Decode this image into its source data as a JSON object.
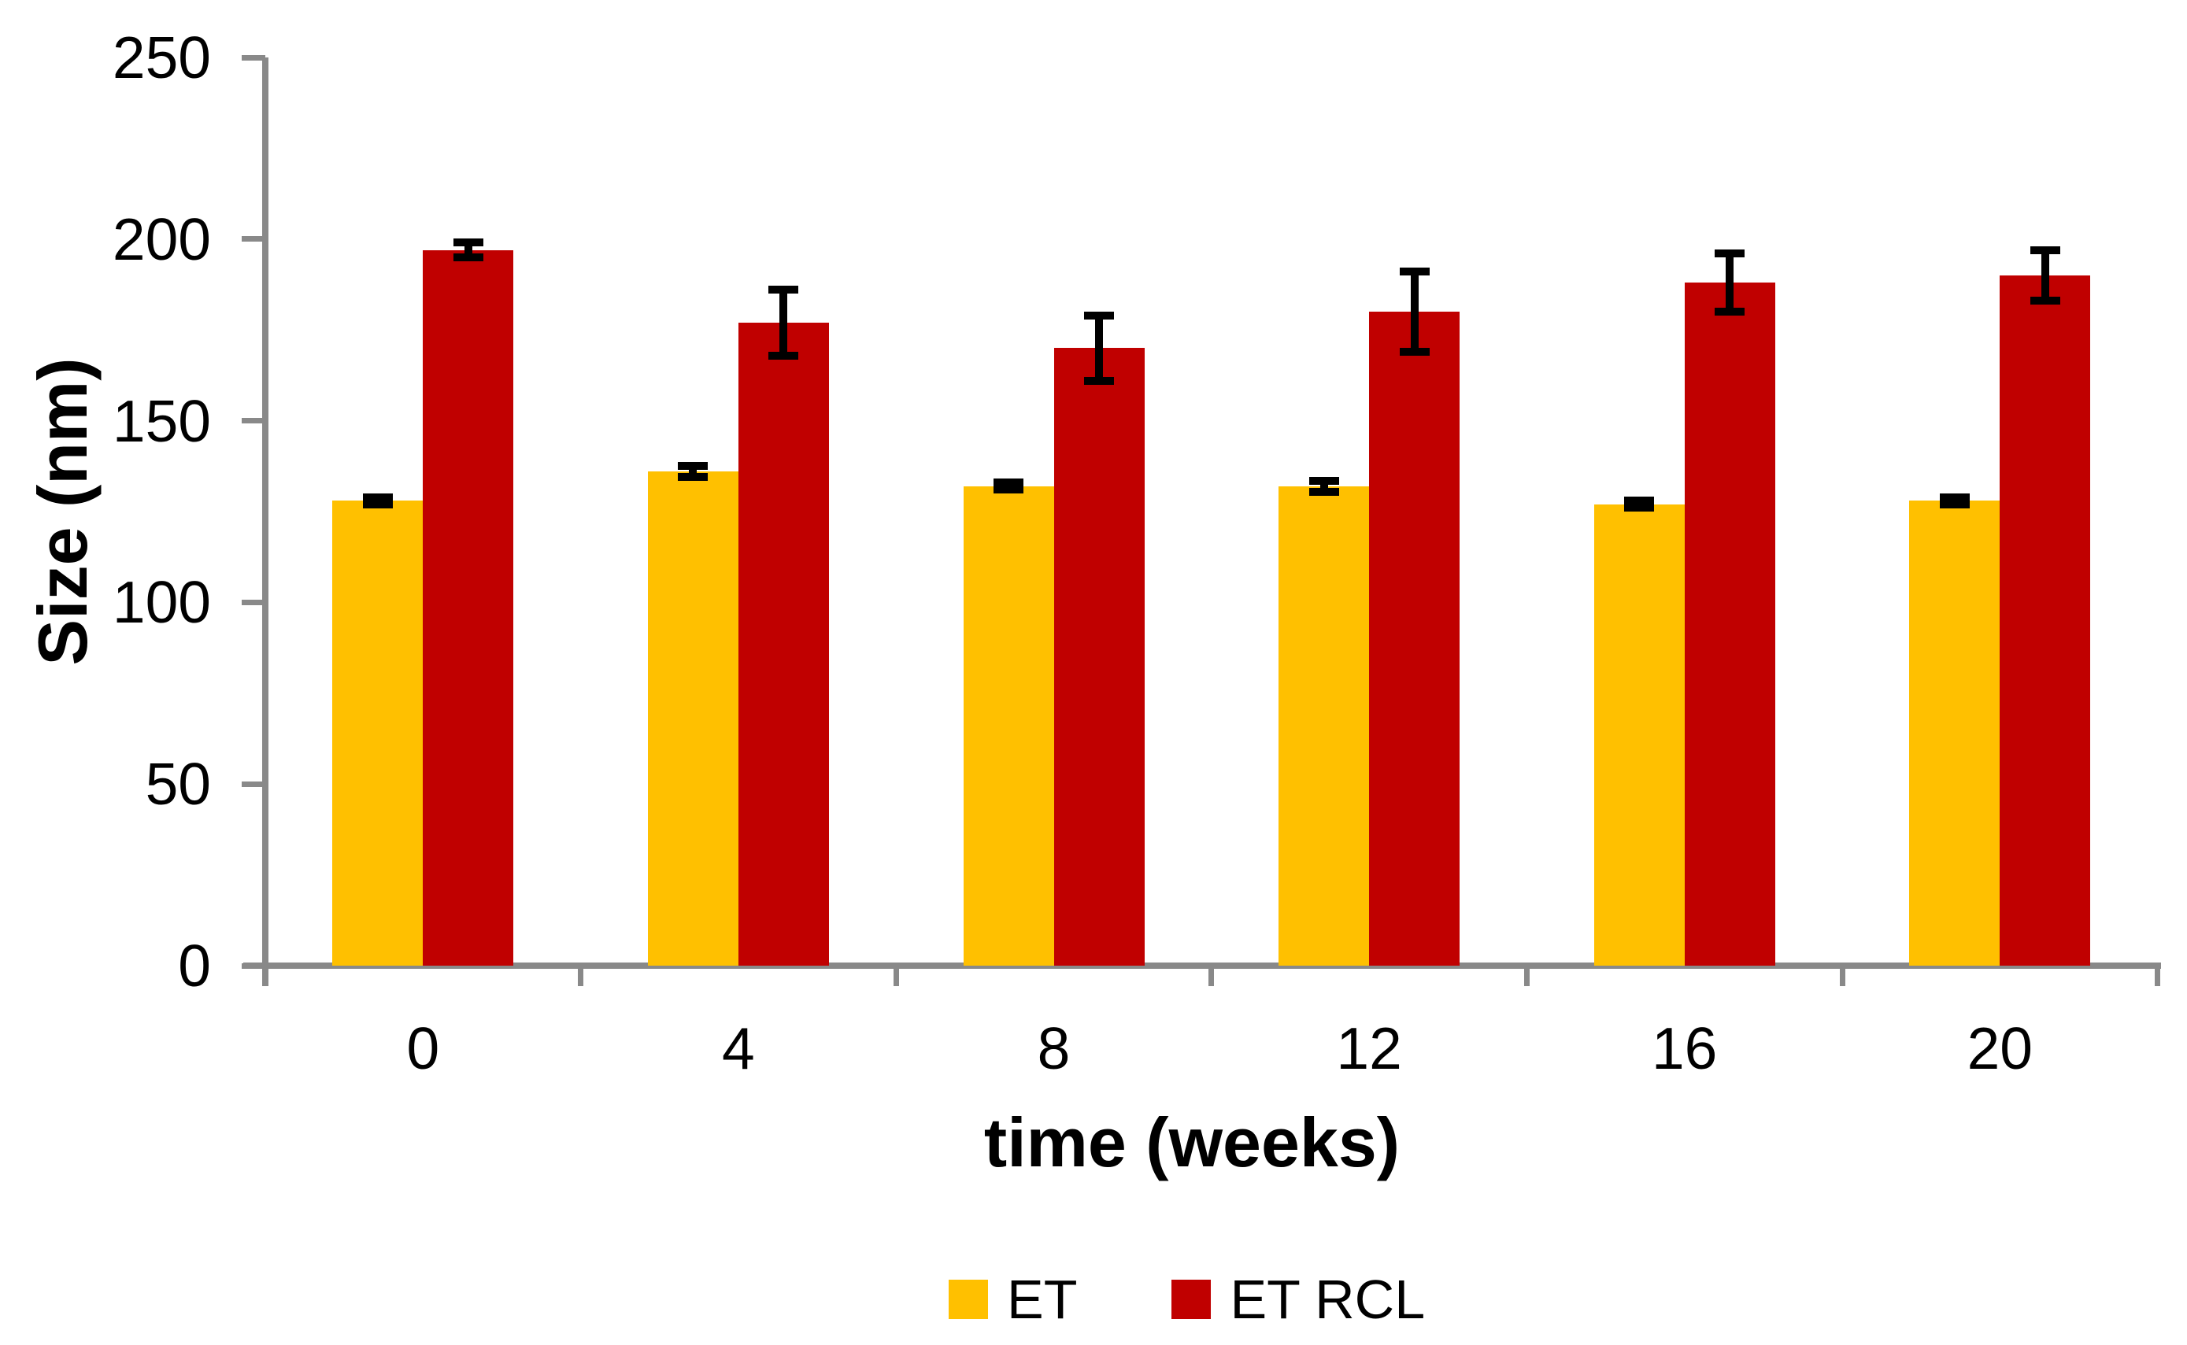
{
  "chart_data": {
    "type": "bar",
    "title": "",
    "xlabel": "time (weeks)",
    "ylabel": "Size (nm)",
    "categories": [
      "0",
      "4",
      "8",
      "12",
      "16",
      "20"
    ],
    "series": [
      {
        "name": "ET",
        "color": "#FFC000",
        "values": [
          128,
          136,
          132,
          132,
          127,
          128
        ],
        "errors": [
          1,
          1.5,
          1,
          1.5,
          1,
          1
        ]
      },
      {
        "name": "ET RCL",
        "color": "#C00000",
        "values": [
          197,
          177,
          170,
          180,
          188,
          190
        ],
        "errors": [
          2,
          9,
          9,
          11,
          8,
          7
        ]
      }
    ],
    "ylim": [
      0,
      250
    ],
    "y_ticks": [
      0,
      50,
      100,
      150,
      200,
      250
    ],
    "grid": false,
    "legend_position": "bottom",
    "axis_color": "#898989",
    "error_bar_color": "#000000",
    "background": "#FFFFFF"
  }
}
